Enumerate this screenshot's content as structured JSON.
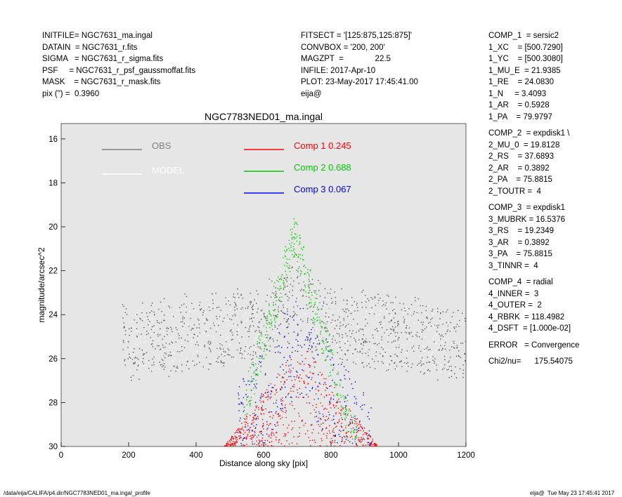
{
  "header": {
    "left": [
      "INITFILE= NGC7631_ma.ingal",
      "DATAIN  = NGC7631_r.fits",
      "SIGMA   = NGC7631_r_sigma.fits",
      "PSF     = NGC7631_r_psf_gaussmoffat.fits",
      "MASK    = NGC7631_r_mask.fits",
      "pix (\") =  0.3960"
    ],
    "middle": [
      "FITSECT = '[125:875,125:875]'",
      "CONVBOX = '200, 200'",
      "MAGZPT  =              22.5",
      "INFILE: 2017-Apr-10",
      "PLOT: 23-May-2017 17:45:41.00",
      "eija@"
    ]
  },
  "side_panel": {
    "blocks": [
      [
        "COMP_1  = sersic2",
        "1_XC    = [500.7290]",
        "1_YC    = [500.3080]",
        "1_MU_E  = 21.9385",
        "1_RE    = 24.0830",
        "1_N     = 3.4093",
        "1_AR    = 0.5928",
        "1_PA    = 79.9797"
      ],
      [
        "COMP_2  = expdisk1 \\",
        "2_MU_0  = 19.8128",
        "2_RS    = 37.6893",
        "2_AR    = 0.3892",
        "2_PA    = 75.8815",
        "2_TOUTR =  4"
      ],
      [
        "COMP_3  = expdisk1",
        "3_MUBRK = 16.5376",
        "3_RS    = 19.2349",
        "3_AR    = 0.3892",
        "3_PA    = 75.8815",
        "3_TINNR =  4"
      ],
      [
        "COMP_4  = radial",
        "4_INNER =  3",
        "4_OUTER =  2",
        "4_RBRK  = 118.4982",
        "4_DSFT  = [1.000e-02]"
      ],
      [
        "ERROR   = Convergence"
      ],
      [
        "Chi2/nu=      175.54075"
      ]
    ]
  },
  "footer": {
    "path": "/data/eija/CALIFA/p4.dir/NGC7783NED01_ma.ingal_profile",
    "stamp": "eija@  Tue May 23 17:45:41 2017"
  },
  "chart_data": {
    "type": "scatter",
    "title": "NGC7783NED01_ma.ingal",
    "xlabel": "Distance along sky [pix]",
    "ylabel": "magnitude/arcsec^2",
    "xlim": [
      0,
      1200
    ],
    "ylim": [
      30,
      15.3
    ],
    "xticks": [
      "0",
      "200",
      "400",
      "600",
      "800",
      "1000",
      "1200"
    ],
    "yticks": [
      "16",
      "18",
      "20",
      "22",
      "24",
      "26",
      "28",
      "30"
    ],
    "background": "#e6e6e6",
    "legend": [
      {
        "label": "OBS",
        "color": "#7f7f7f"
      },
      {
        "label": "MODEL",
        "color": "#ffffff"
      }
    ],
    "components": [
      {
        "name": "Comp 1",
        "fraction": "0.245",
        "color": "#ff0000"
      },
      {
        "name": "Comp 2",
        "fraction": "0.688",
        "color": "#00cc00"
      },
      {
        "name": "Comp 3",
        "fraction": "0.067",
        "color": "#0000ff"
      }
    ],
    "series": [
      {
        "name": "OBS",
        "color": "#555555",
        "center": 680,
        "peak_mag": 23.3,
        "scale": 110,
        "xrange": [
          180,
          1200
        ],
        "n": 1100
      },
      {
        "name": "MODEL",
        "color": "#ffffff",
        "center": 680,
        "peak_mag": 21.0,
        "scale": 95,
        "xrange": [
          200,
          1150
        ],
        "n": 500
      },
      {
        "name": "Comp 1",
        "color": "#ff0000",
        "center": 710,
        "peak_mag": 25.6,
        "scale": 100,
        "xrange": [
          470,
          960
        ],
        "n": 700
      },
      {
        "name": "Comp 2",
        "color": "#00cc00",
        "center": 690,
        "peak_mag": 19.4,
        "scale": 90,
        "xrange": [
          540,
          880
        ],
        "n": 400
      },
      {
        "name": "Comp 3",
        "color": "#0000ff",
        "center": 700,
        "peak_mag": 23.0,
        "scale": 95,
        "xrange": [
          520,
          920
        ],
        "n": 350
      }
    ]
  }
}
